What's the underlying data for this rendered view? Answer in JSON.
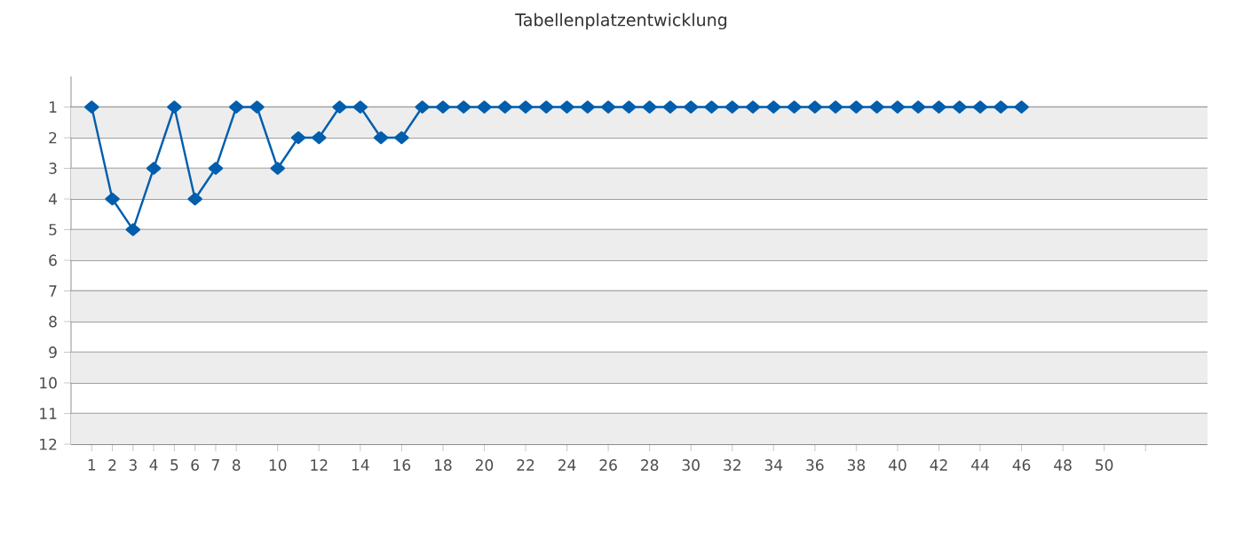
{
  "chart_data": {
    "type": "line",
    "title": "Tabellenplatzentwicklung",
    "x": [
      1,
      2,
      3,
      4,
      5,
      6,
      7,
      8,
      9,
      10,
      11,
      12,
      13,
      14,
      15,
      16,
      17,
      18,
      19,
      20,
      21,
      22,
      23,
      24,
      25,
      26,
      27,
      28,
      29,
      30,
      31,
      32,
      33,
      34,
      35,
      36,
      37,
      38,
      39,
      40,
      41,
      42,
      43,
      44,
      45,
      46
    ],
    "series": [
      {
        "color": "#005ead",
        "values": [
          1,
          4,
          5,
          3,
          1,
          4,
          3,
          1,
          1,
          3,
          2,
          2,
          1,
          1,
          2,
          2,
          1,
          1,
          1,
          1,
          1,
          1,
          1,
          1,
          1,
          1,
          1,
          1,
          1,
          1,
          1,
          1,
          1,
          1,
          1,
          1,
          1,
          1,
          1,
          1,
          1,
          1,
          1,
          1,
          1,
          1
        ]
      }
    ],
    "xlim": [
      0,
      55
    ],
    "xticks": [
      1,
      2,
      3,
      4,
      5,
      6,
      7,
      8,
      10,
      12,
      14,
      16,
      18,
      20,
      22,
      24,
      26,
      28,
      30,
      32,
      34,
      36,
      38,
      40,
      42,
      44,
      46,
      48,
      50,
      {
        "value": 52,
        "label": null
      }
    ],
    "ylim": [
      12,
      0
    ],
    "yticks": [
      1,
      2,
      3,
      4,
      5,
      6,
      7,
      8,
      9,
      10,
      11,
      12
    ],
    "grid": "y",
    "marker": "diamond",
    "line_style": "solid"
  }
}
